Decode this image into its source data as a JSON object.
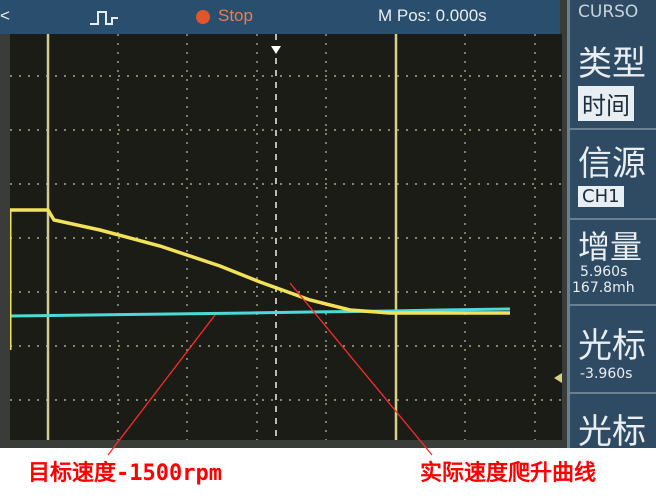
{
  "toolbar": {
    "back_glyph": "<",
    "trigger_icon": "pulse-trigger-icon",
    "run_state": "Stop",
    "run_state_color": "#e0552a",
    "position": "M Pos: 0.000s"
  },
  "menu": {
    "title": "CURSO",
    "type_label": "类型",
    "type_value": "时间",
    "source_label": "信源",
    "source_value": "CH1",
    "delta_label": "增量",
    "delta_time": "5.960s",
    "delta_value": "167.8mh",
    "cursor1_label": "光标",
    "cursor1_value": "-3.960s",
    "cursor2_label": "光标"
  },
  "colors": {
    "ch1_trace": "#f2e25a",
    "ch2_trace": "#4fd9d6",
    "annotation": "#ff0000",
    "grid": "#d9d6b0"
  },
  "annotations": {
    "target_speed": "目标速度-1500rpm",
    "actual_speed": "实际速度爬升曲线"
  }
}
